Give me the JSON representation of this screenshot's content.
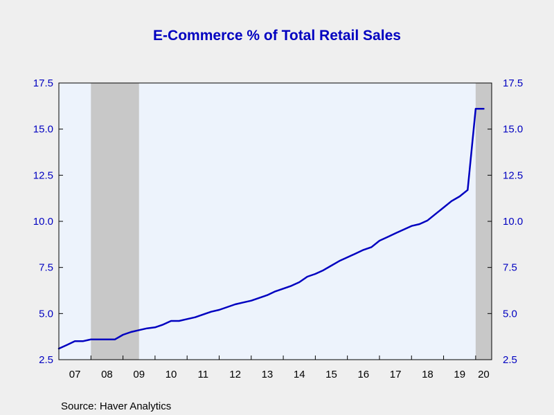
{
  "chart_data": {
    "type": "line",
    "title": "E-Commerce % of Total Retail Sales",
    "source": "Source:  Haver Analytics",
    "xlabel": "",
    "ylabel": "",
    "x_range": [
      2007.0,
      2020.5
    ],
    "ylim": [
      2.5,
      17.5
    ],
    "y_ticks": [
      "2.5",
      "5.0",
      "7.5",
      "10.0",
      "12.5",
      "15.0",
      "17.5"
    ],
    "y_ticks_both_sides": true,
    "x_ticks": [
      "07",
      "08",
      "09",
      "10",
      "11",
      "12",
      "13",
      "14",
      "15",
      "16",
      "17",
      "18",
      "19",
      "20"
    ],
    "grid": false,
    "legend": "none",
    "recession_shading": [
      {
        "start": 2008.0,
        "end": 2009.5
      },
      {
        "start": 2020.0,
        "end": 2020.5
      }
    ],
    "series": [
      {
        "color": "#0000c0",
        "x": [
          2007.0,
          2007.25,
          2007.5,
          2007.75,
          2008.0,
          2008.25,
          2008.5,
          2008.75,
          2009.0,
          2009.25,
          2009.5,
          2009.75,
          2010.0,
          2010.25,
          2010.5,
          2010.75,
          2011.0,
          2011.25,
          2011.5,
          2011.75,
          2012.0,
          2012.25,
          2012.5,
          2012.75,
          2013.0,
          2013.25,
          2013.5,
          2013.75,
          2014.0,
          2014.25,
          2014.5,
          2014.75,
          2015.0,
          2015.25,
          2015.5,
          2015.75,
          2016.0,
          2016.25,
          2016.5,
          2016.75,
          2017.0,
          2017.25,
          2017.5,
          2017.75,
          2018.0,
          2018.25,
          2018.5,
          2018.75,
          2019.0,
          2019.25,
          2019.5,
          2019.75,
          2020.0,
          2020.25
        ],
        "y": [
          3.1,
          3.3,
          3.5,
          3.5,
          3.6,
          3.6,
          3.6,
          3.6,
          3.85,
          4.0,
          4.1,
          4.2,
          4.25,
          4.4,
          4.6,
          4.6,
          4.7,
          4.8,
          4.95,
          5.1,
          5.2,
          5.35,
          5.5,
          5.6,
          5.7,
          5.85,
          6.0,
          6.2,
          6.35,
          6.5,
          6.7,
          7.0,
          7.15,
          7.35,
          7.6,
          7.85,
          8.05,
          8.25,
          8.45,
          8.6,
          8.95,
          9.15,
          9.35,
          9.55,
          9.75,
          9.85,
          10.05,
          10.4,
          10.75,
          11.1,
          11.35,
          11.7,
          16.1,
          16.1
        ]
      }
    ],
    "colors": {
      "background": "#efefef",
      "plot_background": "#edf3fc",
      "recession": "#c8c8c8",
      "title": "#0000c0",
      "axis_text": "#0000c0",
      "tick_text_x": "#000000"
    }
  }
}
